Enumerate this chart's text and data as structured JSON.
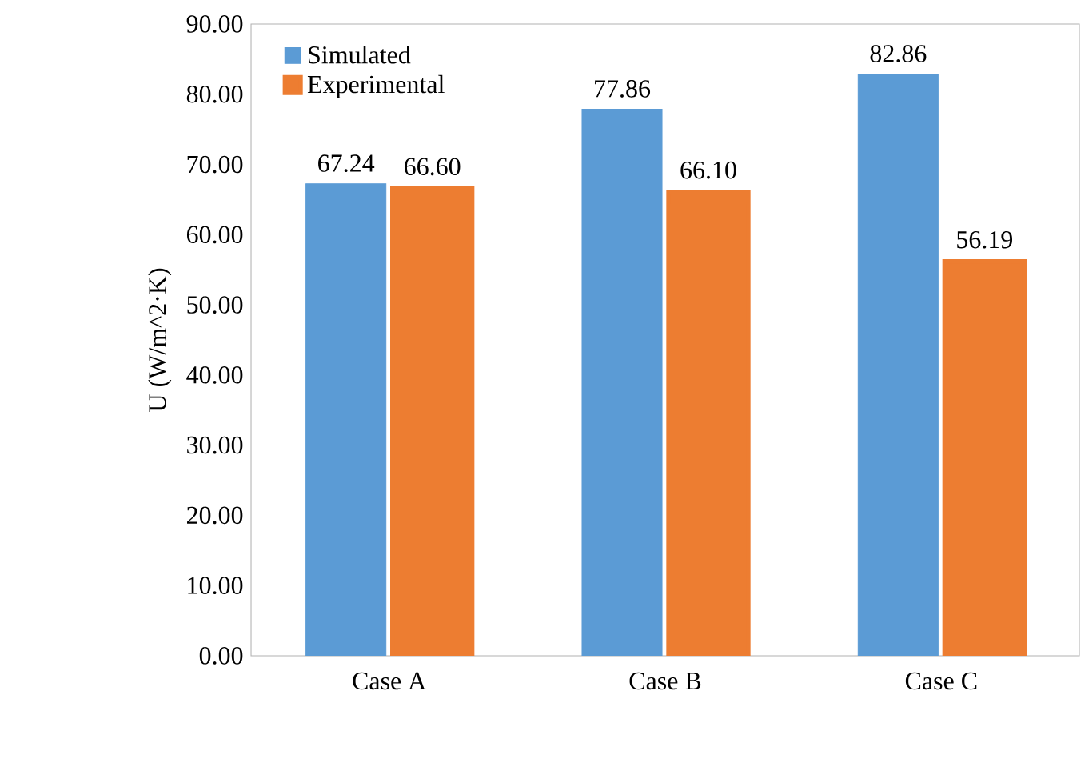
{
  "chart_data": {
    "type": "bar",
    "ylabel": "U (W/m^2·K)",
    "categories": [
      "Case A",
      "Case B",
      "Case C"
    ],
    "series": [
      {
        "name": "Simulated",
        "color": "#5b9bd5",
        "values": [
          67.24,
          77.86,
          82.86
        ],
        "value_labels": [
          "67.24",
          "77.86",
          "82.86"
        ]
      },
      {
        "name": "Experimental",
        "color": "#ed7d31",
        "values": [
          66.6,
          66.1,
          56.19
        ],
        "value_labels": [
          "66.60",
          "66.10",
          "56.19"
        ]
      }
    ],
    "ylim": [
      0,
      90
    ],
    "yticks": [
      {
        "value": 0,
        "label": "0.00"
      },
      {
        "value": 10,
        "label": "10.00"
      },
      {
        "value": 20,
        "label": "20.00"
      },
      {
        "value": 30,
        "label": "30.00"
      },
      {
        "value": 40,
        "label": "40.00"
      },
      {
        "value": 50,
        "label": "50.00"
      },
      {
        "value": 60,
        "label": "60.00"
      },
      {
        "value": 70,
        "label": "70.00"
      },
      {
        "value": 80,
        "label": "80.00"
      },
      {
        "value": 90,
        "label": "90.00"
      }
    ],
    "legend": "top left",
    "grid": false
  }
}
